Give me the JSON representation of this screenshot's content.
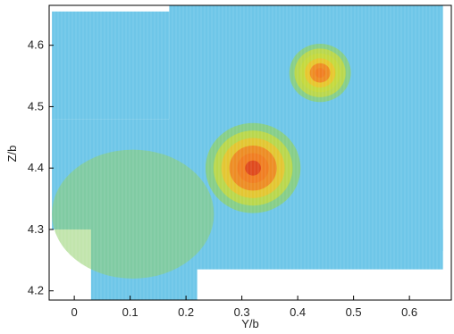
{
  "chart_data": {
    "type": "heatmap",
    "xlabel": "Y/b",
    "ylabel": "Z/b",
    "xlim": [
      -0.045,
      0.675
    ],
    "ylim": [
      4.185,
      4.665
    ],
    "x_ticks": [
      "0",
      "0.1",
      "0.2",
      "0.3",
      "0.4",
      "0.5",
      "0.6"
    ],
    "x_tick_values": [
      0,
      0.1,
      0.2,
      0.3,
      0.4,
      0.5,
      0.6
    ],
    "y_ticks": [
      "4.2",
      "4.3",
      "4.4",
      "4.5",
      "4.6"
    ],
    "y_tick_values": [
      4.2,
      4.3,
      4.4,
      4.5,
      4.6
    ],
    "grid": false,
    "legend": "none",
    "colormap": [
      "#6ec6e8",
      "#72cdb0",
      "#8fd06a",
      "#c9d93a",
      "#f2c02a",
      "#f07a22",
      "#d93a1e"
    ],
    "background_color": "#6ec6e8",
    "measurement_windows": [
      {
        "x": [
          -0.04,
          0.17
        ],
        "z": [
          4.48,
          4.655
        ]
      },
      {
        "x": [
          -0.04,
          0.24
        ],
        "z": [
          4.3,
          4.48
        ]
      },
      {
        "x": [
          0.03,
          0.22
        ],
        "z": [
          4.185,
          4.32
        ]
      },
      {
        "x": [
          0.17,
          0.66
        ],
        "z": [
          4.265,
          4.665
        ]
      },
      {
        "x": [
          0.2,
          0.66
        ],
        "z": [
          4.235,
          4.3
        ]
      }
    ],
    "vortex_cores": [
      {
        "y": 0.32,
        "z": 4.4,
        "peak_level": 1.0,
        "extent": 0.085
      },
      {
        "y": 0.44,
        "z": 4.555,
        "peak_level": 0.85,
        "extent": 0.055
      }
    ],
    "shear_layer": {
      "y": [
        -0.04,
        0.25
      ],
      "z": [
        4.22,
        4.43
      ],
      "level": 0.35
    }
  }
}
